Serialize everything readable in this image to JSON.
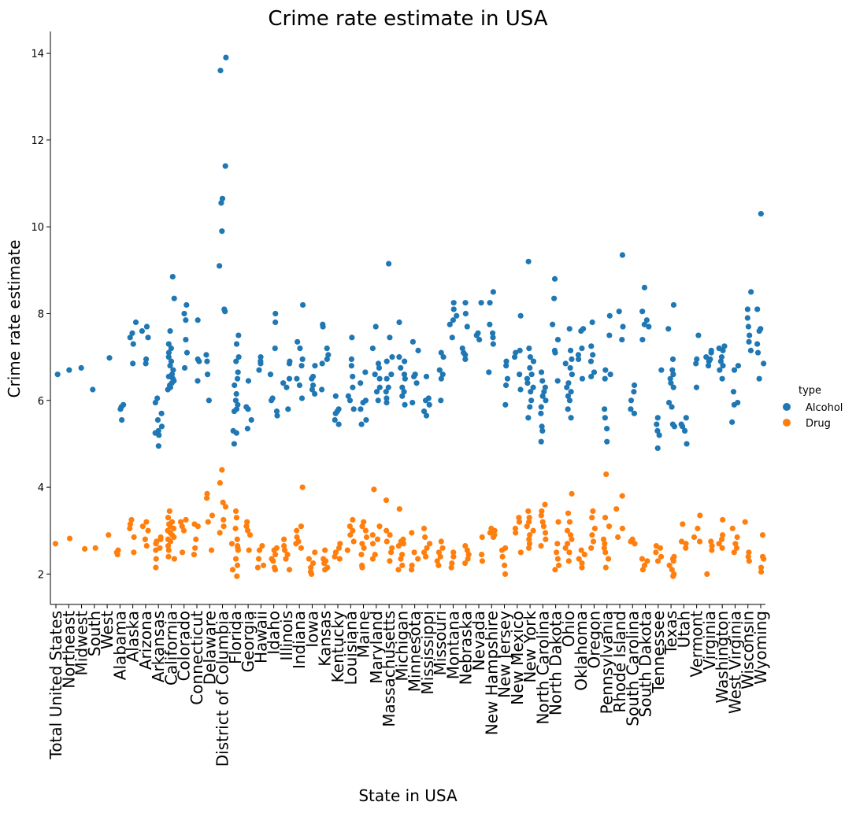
{
  "chart_data": {
    "type": "scatter",
    "subtype": "strip",
    "title": "Crime rate estimate in USA",
    "xlabel": "State in USA",
    "ylabel": "Crime rate estimate",
    "ylim": [
      1.3,
      14.5
    ],
    "yticks": [
      2,
      4,
      6,
      8,
      10,
      12,
      14
    ],
    "grid": false,
    "legend": {
      "title": "type",
      "placement": "right"
    },
    "categories": [
      "Total United States",
      "Northeast",
      "Midwest",
      "South",
      "West",
      "Alabama",
      "Alaska",
      "Arizona",
      "Arkansas",
      "California",
      "Colorado",
      "Connecticut",
      "Delaware",
      "District of Columbia",
      "Florida",
      "Georgia",
      "Hawaii",
      "Idaho",
      "Illinois",
      "Indiana",
      "Iowa",
      "Kansas",
      "Kentucky",
      "Louisiana",
      "Maine",
      "Maryland",
      "Massachusetts",
      "Michigan",
      "Minnesota",
      "Mississippi",
      "Missouri",
      "Montana",
      "Nebraska",
      "Nevada",
      "New Hampshire",
      "New Jersey",
      "New Mexico",
      "New York",
      "North Carolina",
      "North Dakota",
      "Ohio",
      "Oklahoma",
      "Oregon",
      "Pennsylvania",
      "Rhode Island",
      "South Carolina",
      "South Dakota",
      "Tennessee",
      "Texas",
      "Utah",
      "Vermont",
      "Virginia",
      "Washington",
      "West Virginia",
      "Wisconsin",
      "Wyoming"
    ],
    "series": [
      {
        "name": "Alcohol",
        "color": "#1f77b4",
        "values": [
          [
            6.6
          ],
          [
            6.7
          ],
          [
            6.75
          ],
          [
            6.25
          ],
          [
            6.98
          ],
          [
            5.55,
            5.8,
            5.85,
            5.9
          ],
          [
            6.85,
            7.3,
            7.45,
            7.55,
            7.8
          ],
          [
            6.85,
            6.95,
            7.45,
            7.6,
            7.7
          ],
          [
            4.95,
            5.2,
            5.25,
            5.3,
            5.4,
            5.55,
            5.7,
            5.95,
            6.05
          ],
          [
            6.25,
            6.3,
            6.35,
            6.4,
            6.45,
            6.5,
            6.55,
            6.6,
            6.7,
            6.8,
            6.9,
            7.0,
            7.1,
            7.2,
            7.3,
            7.6,
            8.35,
            8.85
          ],
          [
            6.75,
            7.1,
            7.4,
            7.85,
            8.0,
            8.2
          ],
          [
            6.45,
            6.9,
            6.95,
            7.85
          ],
          [
            6.0,
            6.6,
            6.9,
            7.05
          ],
          [
            8.05,
            8.1,
            9.1,
            9.9,
            10.55,
            10.65,
            11.4,
            13.6,
            13.9
          ],
          [
            5.0,
            5.25,
            5.3,
            5.75,
            5.8,
            5.9,
            6.0,
            6.15,
            6.35,
            6.5,
            6.65,
            6.9,
            7.0,
            7.3,
            7.5
          ],
          [
            5.35,
            5.55,
            5.8,
            5.85,
            6.45
          ],
          [
            6.7,
            6.85,
            6.9,
            7.0
          ],
          [
            5.65,
            5.75,
            6.0,
            6.05,
            6.6,
            7.2,
            7.8,
            8.0
          ],
          [
            5.8,
            6.3,
            6.4,
            6.5,
            6.85,
            6.9
          ],
          [
            6.05,
            6.35,
            6.5,
            6.8,
            6.95,
            7.2,
            7.35,
            8.2
          ],
          [
            6.15,
            6.25,
            6.35,
            6.5,
            6.55,
            6.8
          ],
          [
            6.25,
            6.85,
            6.95,
            7.05,
            7.2,
            7.7,
            7.75
          ],
          [
            5.45,
            5.55,
            5.7,
            5.75,
            5.8,
            6.1
          ],
          [
            5.8,
            6.0,
            6.1,
            6.3,
            6.55,
            6.8,
            6.95,
            7.45
          ],
          [
            5.45,
            5.55,
            5.8,
            5.95,
            6.0,
            6.4,
            6.65
          ],
          [
            6.0,
            6.2,
            6.3,
            6.5,
            6.6,
            6.75,
            6.85,
            7.2,
            7.7
          ],
          [
            5.95,
            6.05,
            6.2,
            6.3,
            6.5,
            6.6,
            6.9,
            7.0,
            7.45,
            9.15
          ],
          [
            5.9,
            6.1,
            6.2,
            6.3,
            6.5,
            6.6,
            6.75,
            6.9,
            7.0,
            7.8
          ],
          [
            5.95,
            6.4,
            6.55,
            6.6,
            7.15,
            7.35
          ],
          [
            5.65,
            5.75,
            5.9,
            6.0,
            6.05,
            6.55
          ],
          [
            6.0,
            6.5,
            6.6,
            6.7,
            7.0,
            7.1
          ],
          [
            7.45,
            7.75,
            7.85,
            7.95,
            8.1,
            8.25
          ],
          [
            6.95,
            7.05,
            7.1,
            7.2,
            7.7,
            8.0,
            8.25
          ],
          [
            7.4,
            7.5,
            7.55,
            8.25
          ],
          [
            6.65,
            7.3,
            7.45,
            7.55,
            7.75,
            8.25,
            8.5
          ],
          [
            5.9,
            6.35,
            6.5,
            6.8,
            6.9
          ],
          [
            6.25,
            6.6,
            7.0,
            7.1,
            7.15,
            7.95
          ],
          [
            5.6,
            5.85,
            6.0,
            6.2,
            6.3,
            6.4,
            6.5,
            6.6,
            6.75,
            6.9,
            7.0,
            7.2,
            9.2
          ],
          [
            5.05,
            5.3,
            5.4,
            5.7,
            5.85,
            6.0,
            6.1,
            6.2,
            6.3,
            6.45,
            6.65
          ],
          [
            6.45,
            7.1,
            7.15,
            7.4,
            7.75,
            8.35,
            8.8
          ],
          [
            5.6,
            5.8,
            6.0,
            6.1,
            6.2,
            6.3,
            6.4,
            6.6,
            6.75,
            6.85,
            6.95,
            7.15,
            7.65
          ],
          [
            6.5,
            6.95,
            7.05,
            7.2,
            7.6,
            7.65
          ],
          [
            6.55,
            6.65,
            6.9,
            7.05,
            7.25,
            7.8
          ],
          [
            5.05,
            5.35,
            5.6,
            5.8,
            6.5,
            6.6,
            6.7,
            7.5,
            7.95
          ],
          [
            7.4,
            7.7,
            8.05,
            9.35
          ],
          [
            5.7,
            5.8,
            6.0,
            6.2,
            6.35
          ],
          [
            7.4,
            7.7,
            7.75,
            7.85,
            8.05,
            8.6
          ],
          [
            4.9,
            5.2,
            5.3,
            5.45,
            5.6,
            6.7
          ],
          [
            5.4,
            5.45,
            5.85,
            5.95,
            6.3,
            6.4,
            6.5,
            6.6,
            6.7,
            6.95,
            7.65,
            8.2
          ],
          [
            5.0,
            5.3,
            5.4,
            5.45,
            5.6
          ],
          [
            6.3,
            6.85,
            6.95,
            7.5
          ],
          [
            6.8,
            6.9,
            6.95,
            7.0,
            7.1,
            7.15
          ],
          [
            6.5,
            6.7,
            6.8,
            6.9,
            7.0,
            7.15,
            7.2,
            7.25
          ],
          [
            5.5,
            5.9,
            5.95,
            6.2,
            6.7,
            6.8
          ],
          [
            7.15,
            7.35,
            7.5,
            7.7,
            7.9,
            8.1,
            8.5
          ],
          [
            6.5,
            6.85,
            7.1,
            7.3,
            7.6,
            7.65,
            8.1,
            10.3
          ]
        ]
      },
      {
        "name": "Drug",
        "color": "#ff7f0e",
        "values": [
          [
            2.7
          ],
          [
            2.82
          ],
          [
            2.58
          ],
          [
            2.6
          ],
          [
            2.9
          ],
          [
            2.45,
            2.5,
            2.55
          ],
          [
            2.5,
            2.85,
            3.05,
            3.15,
            3.25
          ],
          [
            2.65,
            2.8,
            3.0,
            3.1,
            3.2
          ],
          [
            2.15,
            2.35,
            2.55,
            2.6,
            2.7,
            2.75,
            2.8,
            2.85
          ],
          [
            2.35,
            2.4,
            2.55,
            2.65,
            2.75,
            2.8,
            2.85,
            2.9,
            2.95,
            3.0,
            3.05,
            3.1,
            3.15,
            3.2,
            3.3,
            3.45
          ],
          [
            2.5,
            3.0,
            3.1,
            3.2,
            3.25
          ],
          [
            2.45,
            2.6,
            2.8,
            3.1,
            3.15
          ],
          [
            2.55,
            3.2,
            3.35,
            3.75,
            3.85
          ],
          [
            2.95,
            3.1,
            3.25,
            3.55,
            3.65,
            4.1,
            4.4
          ],
          [
            1.95,
            2.1,
            2.2,
            2.35,
            2.55,
            2.6,
            2.65,
            2.7,
            2.8,
            3.05,
            3.3,
            3.45
          ],
          [
            2.55,
            2.9,
            3.0,
            3.1,
            3.2
          ],
          [
            2.15,
            2.2,
            2.35,
            2.55,
            2.65
          ],
          [
            2.1,
            2.15,
            2.3,
            2.35,
            2.45,
            2.55,
            2.6
          ],
          [
            2.1,
            2.35,
            2.45,
            2.55,
            2.65,
            2.8
          ],
          [
            2.6,
            2.7,
            2.75,
            2.85,
            3.0,
            3.1,
            4.0
          ],
          [
            2.0,
            2.05,
            2.15,
            2.25,
            2.35,
            2.5
          ],
          [
            2.1,
            2.15,
            2.25,
            2.3,
            2.35,
            2.55
          ],
          [
            2.35,
            2.4,
            2.5,
            2.6,
            2.7
          ],
          [
            2.55,
            2.75,
            2.9,
            3.0,
            3.1,
            3.25
          ],
          [
            2.15,
            2.2,
            2.45,
            2.6,
            2.7,
            2.85,
            3.0,
            3.1,
            3.2
          ],
          [
            2.35,
            2.45,
            2.7,
            2.8,
            2.9,
            3.1,
            3.95
          ],
          [
            2.3,
            2.5,
            2.6,
            2.75,
            2.9,
            3.0,
            3.7
          ],
          [
            2.1,
            2.2,
            2.35,
            2.45,
            2.65,
            2.7,
            2.75,
            2.8,
            3.5
          ],
          [
            2.1,
            2.2,
            2.35,
            2.5,
            2.95
          ],
          [
            2.4,
            2.5,
            2.6,
            2.7,
            2.85,
            3.05
          ],
          [
            2.2,
            2.3,
            2.4,
            2.5,
            2.6,
            2.75
          ],
          [
            2.15,
            2.25,
            2.4,
            2.5
          ],
          [
            2.25,
            2.35,
            2.45,
            2.55,
            2.65
          ],
          [
            2.3,
            2.45,
            2.85
          ],
          [
            2.85,
            2.9,
            2.95,
            3.0,
            3.05
          ],
          [
            2.0,
            2.2,
            2.4,
            2.55,
            2.6
          ],
          [
            2.5,
            2.95,
            3.05,
            3.2,
            3.3
          ],
          [
            2.6,
            2.7,
            2.8,
            2.9,
            3.0,
            3.1,
            3.2,
            3.3,
            3.45
          ],
          [
            2.65,
            2.8,
            2.95,
            3.1,
            3.2,
            3.35,
            3.45,
            3.6
          ],
          [
            2.1,
            2.2,
            2.35,
            2.5,
            2.7,
            3.2
          ],
          [
            2.3,
            2.5,
            2.6,
            2.7,
            2.8,
            2.9,
            3.0,
            3.2,
            3.4,
            3.85
          ],
          [
            2.15,
            2.25,
            2.35,
            2.45,
            2.55
          ],
          [
            2.6,
            2.75,
            2.9,
            3.05,
            3.3,
            3.45
          ],
          [
            2.15,
            2.35,
            2.5,
            2.6,
            2.7,
            2.8,
            3.1,
            3.3,
            4.3
          ],
          [
            2.85,
            3.05,
            3.5,
            3.8
          ],
          [
            2.7,
            2.75,
            2.8
          ],
          [
            2.1,
            2.2,
            2.3,
            2.35
          ],
          [
            2.3,
            2.4,
            2.5,
            2.6,
            2.65
          ],
          [
            1.95,
            2.0,
            2.1,
            2.2,
            2.3,
            2.35,
            2.4
          ],
          [
            2.6,
            2.7,
            2.75,
            3.15
          ],
          [
            2.75,
            2.85,
            3.05,
            3.35
          ],
          [
            2.0,
            2.55,
            2.65,
            2.75
          ],
          [
            2.6,
            2.7,
            2.8,
            2.9,
            3.25
          ],
          [
            2.5,
            2.6,
            2.7,
            2.85,
            3.05
          ],
          [
            2.3,
            2.4,
            2.5,
            3.2
          ],
          [
            2.05,
            2.15,
            2.35,
            2.4,
            2.9
          ]
        ]
      }
    ]
  }
}
